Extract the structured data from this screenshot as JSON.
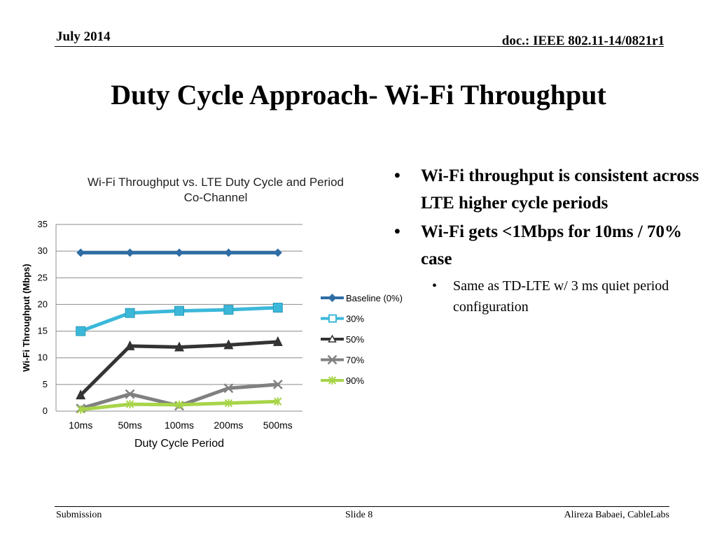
{
  "header": {
    "date": "July 2014",
    "doc": "doc.: IEEE 802.11-14/0821r1"
  },
  "slide_title": "Duty Cycle Approach- Wi-Fi Throughput",
  "bullets": {
    "b1": "Wi-Fi throughput is consistent across LTE higher cycle periods",
    "b2": "Wi-Fi gets <1Mbps for 10ms / 70% case",
    "b3": "Same as TD-LTE w/ 3 ms quiet period configuration",
    "bullet_char": "•"
  },
  "footer": {
    "left": "Submission",
    "center": "Slide 8",
    "right": "Alireza Babaei, CableLabs"
  },
  "chart_data": {
    "type": "line",
    "title": "Wi-Fi Throughput vs. LTE Duty Cycle and Period",
    "subtitle": "Co-Channel",
    "xlabel": "Duty Cycle Period",
    "ylabel": "Wi-Fi Throughput (Mbps)",
    "categories": [
      "10ms",
      "50ms",
      "100ms",
      "200ms",
      "500ms"
    ],
    "ylim": [
      0,
      35
    ],
    "yticks": [
      0,
      5,
      10,
      15,
      20,
      25,
      30,
      35
    ],
    "grid": true,
    "legend_position": "right",
    "series": [
      {
        "name": "Baseline (0%)",
        "values": [
          29.7,
          29.7,
          29.7,
          29.7,
          29.7
        ],
        "color": "#2E6DA4",
        "marker": "diamond"
      },
      {
        "name": "30%",
        "values": [
          15.0,
          18.4,
          18.8,
          19.0,
          19.4
        ],
        "color": "#3BB8D9",
        "marker": "square"
      },
      {
        "name": "50%",
        "values": [
          3.0,
          12.2,
          12.0,
          12.4,
          13.0
        ],
        "color": "#333333",
        "marker": "triangle"
      },
      {
        "name": "70%",
        "values": [
          0.5,
          3.2,
          1.0,
          4.3,
          5.0
        ],
        "color": "#808080",
        "marker": "x"
      },
      {
        "name": "90%",
        "values": [
          0.3,
          1.3,
          1.2,
          1.5,
          1.8
        ],
        "color": "#A8D44A",
        "marker": "star"
      }
    ]
  }
}
